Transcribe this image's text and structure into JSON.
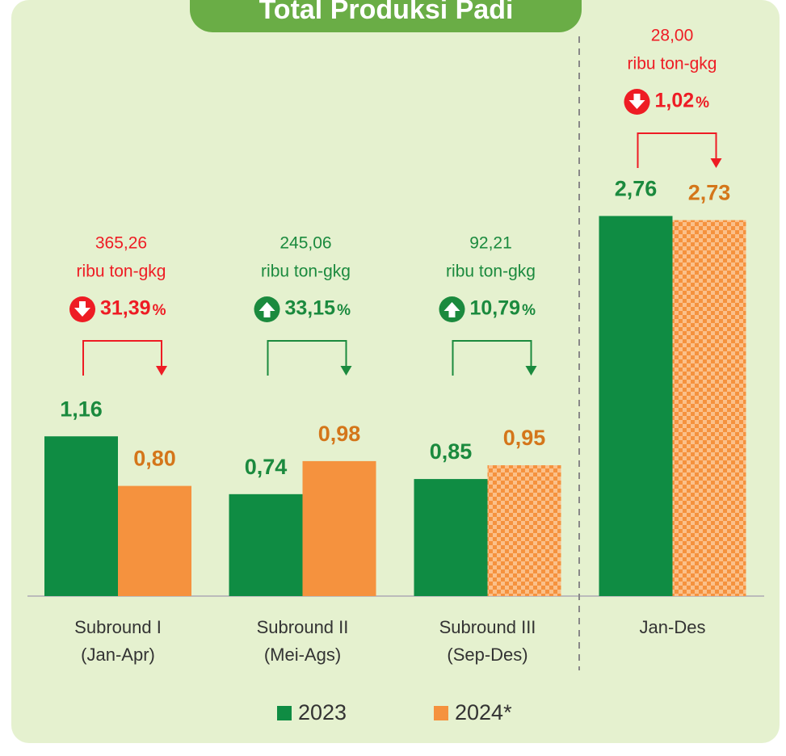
{
  "chart_data": {
    "type": "bar",
    "title": "Total Produksi Padi",
    "categories": [
      [
        "Subround I",
        "(Jan-Apr)"
      ],
      [
        "Subround II",
        "(Mei-Ags)"
      ],
      [
        "Subround III",
        "(Sep-Des)"
      ],
      [
        "Jan-Des"
      ]
    ],
    "series": [
      {
        "name": "2023",
        "color": "#0f8c43",
        "label_color": "#1b8a3e",
        "values": [
          1.16,
          0.74,
          0.85,
          2.76
        ],
        "value_labels": [
          "1,16",
          "0,74",
          "0,85",
          "2,76"
        ]
      },
      {
        "name": "2024*",
        "color": "#f5923e",
        "label_color": "#d4761a",
        "checkered": [
          false,
          false,
          true,
          true
        ],
        "values": [
          0.8,
          0.98,
          0.95,
          2.73
        ],
        "value_labels": [
          "0,80",
          "0,98",
          "0,95",
          "2,73"
        ]
      }
    ],
    "annotations": [
      {
        "amount": "365,26",
        "unit": "ribu ton-gkg",
        "change": "31,39",
        "change_unit": "%",
        "direction": "down"
      },
      {
        "amount": "245,06",
        "unit": "ribu ton-gkg",
        "change": "33,15",
        "change_unit": "%",
        "direction": "up"
      },
      {
        "amount": "92,21",
        "unit": "ribu ton-gkg",
        "change": "10,79",
        "change_unit": "%",
        "direction": "up"
      },
      {
        "amount": "28,00",
        "unit": "ribu ton-gkg",
        "change": "1,02",
        "change_unit": "%",
        "direction": "down"
      }
    ],
    "ylim": [
      0,
      3
    ]
  }
}
